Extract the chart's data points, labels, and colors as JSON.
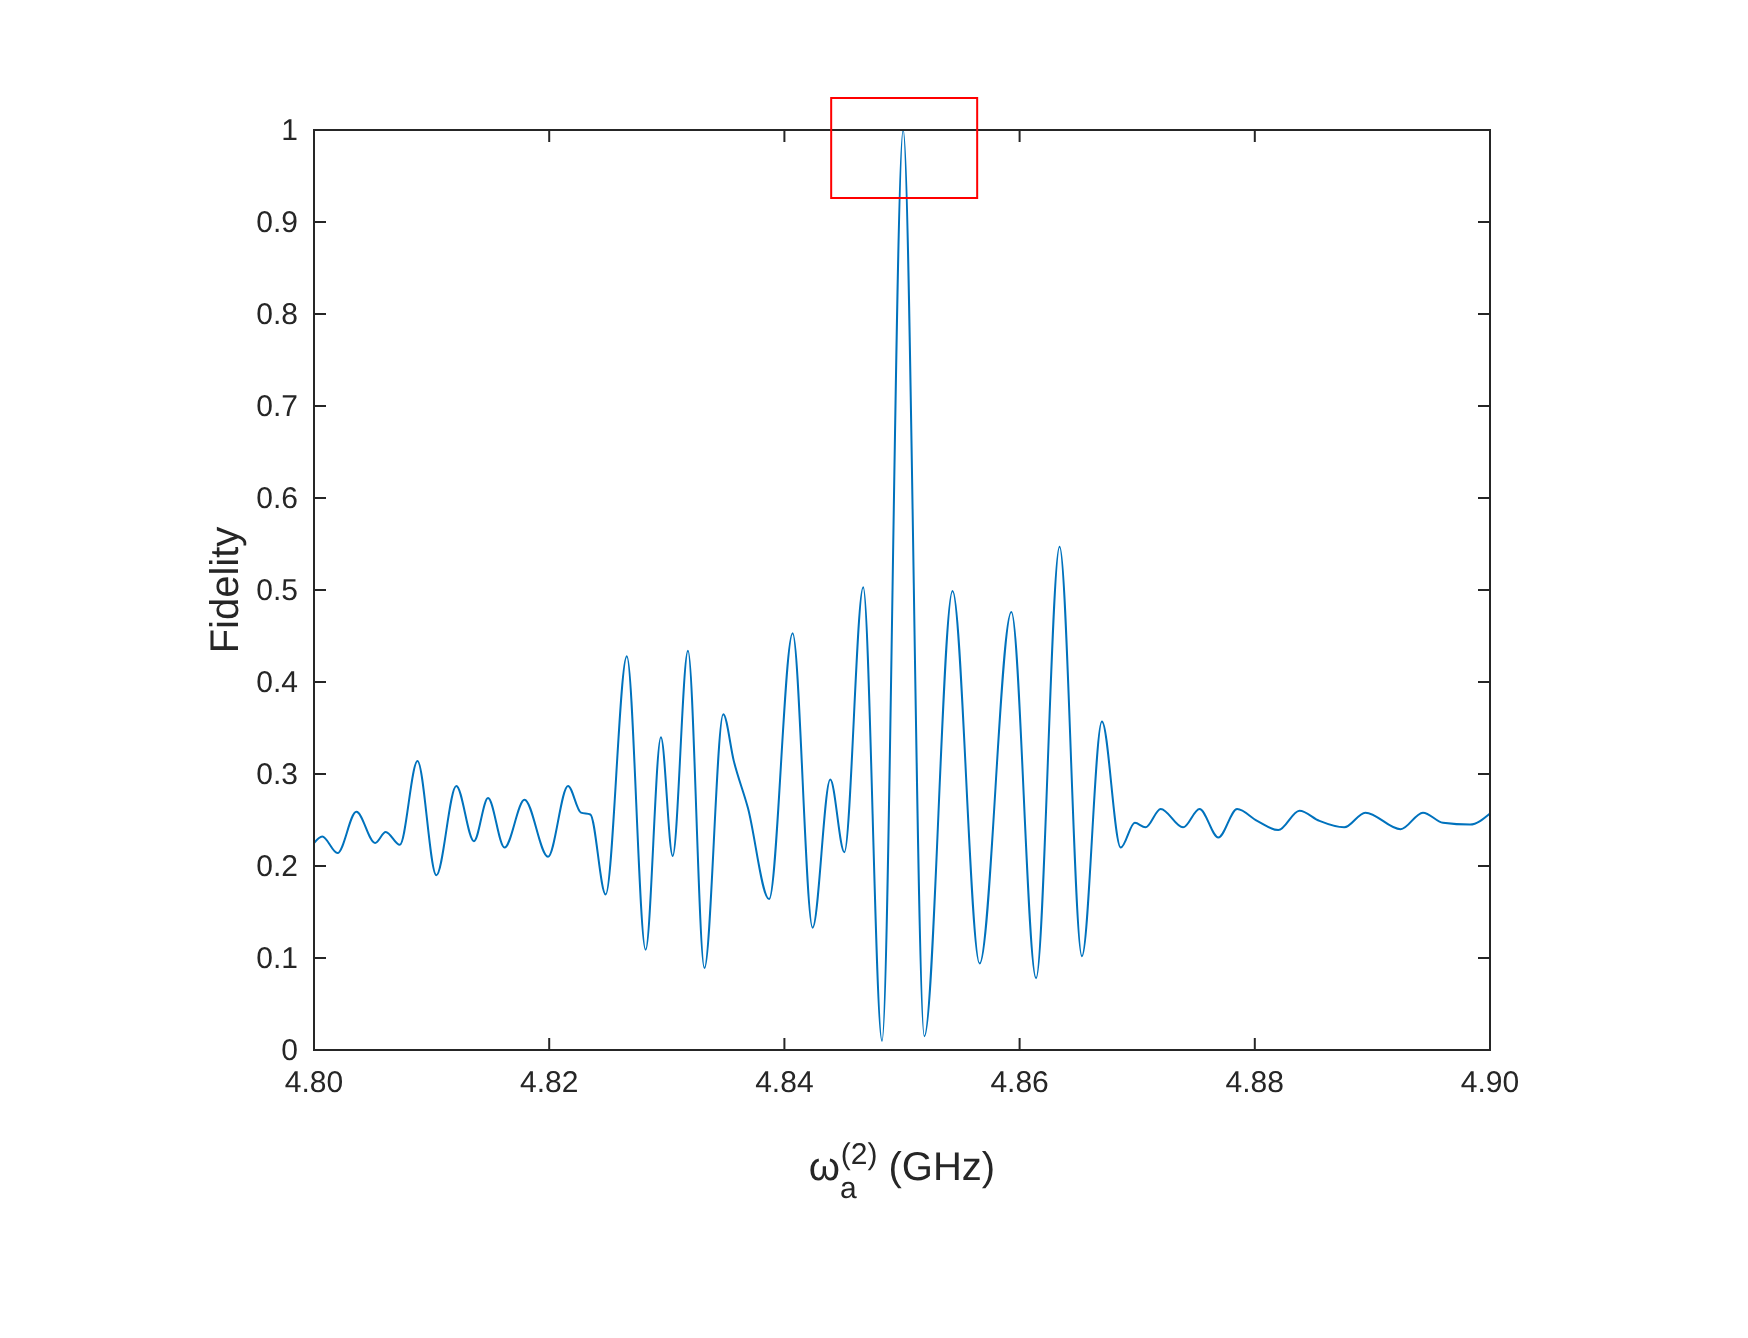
{
  "chart_data": {
    "type": "line",
    "xlabel": "ω$_{a}$$^{(2)}$ (GHz)",
    "ylabel": "Fidelity",
    "xlim": [
      4.8,
      4.9
    ],
    "ylim": [
      0,
      1
    ],
    "xticks": [
      {
        "value": 4.8,
        "label": "4.80"
      },
      {
        "value": 4.82,
        "label": "4.82"
      },
      {
        "value": 4.84,
        "label": "4.84"
      },
      {
        "value": 4.86,
        "label": "4.86"
      },
      {
        "value": 4.88,
        "label": "4.88"
      },
      {
        "value": 4.9,
        "label": "4.90"
      }
    ],
    "yticks": [
      0,
      0.1,
      0.2,
      0.3,
      0.4,
      0.5,
      0.6,
      0.7,
      0.8,
      0.9,
      1
    ],
    "grid": false,
    "marker": "none",
    "series": [
      {
        "color": "#0072bd",
        "x": [
          4.8,
          4.8007,
          4.802,
          4.8036,
          4.8052,
          4.8061,
          4.8073,
          4.8088,
          4.8104,
          4.8121,
          4.8136,
          4.8148,
          4.8162,
          4.8179,
          4.8199,
          4.8216,
          4.8227,
          4.8235,
          4.8248,
          4.8266,
          4.8282,
          4.8295,
          4.8305,
          4.8318,
          4.8332,
          4.8348,
          4.8357,
          4.8369,
          4.8387,
          4.8407,
          4.8424,
          4.8439,
          4.8451,
          4.8467,
          4.8483,
          4.8501,
          4.8519,
          4.8543,
          4.8566,
          4.8593,
          4.8614,
          4.8634,
          4.8653,
          4.867,
          4.8686,
          4.8698,
          4.8707,
          4.872,
          4.8739,
          4.8753,
          4.8769,
          4.8785,
          4.8802,
          4.882,
          4.8838,
          4.8855,
          4.8876,
          4.8894,
          4.8924,
          4.8943,
          4.896,
          4.8983,
          4.9
        ],
        "values": [
          0.225,
          0.232,
          0.214,
          0.259,
          0.225,
          0.237,
          0.223,
          0.314,
          0.19,
          0.287,
          0.227,
          0.274,
          0.22,
          0.272,
          0.21,
          0.287,
          0.258,
          0.256,
          0.169,
          0.428,
          0.109,
          0.34,
          0.211,
          0.434,
          0.089,
          0.365,
          0.314,
          0.263,
          0.164,
          0.453,
          0.133,
          0.294,
          0.215,
          0.503,
          0.01,
          1.0,
          0.015,
          0.499,
          0.094,
          0.476,
          0.078,
          0.547,
          0.102,
          0.357,
          0.22,
          0.247,
          0.242,
          0.262,
          0.242,
          0.262,
          0.231,
          0.262,
          0.249,
          0.239,
          0.26,
          0.249,
          0.242,
          0.258,
          0.24,
          0.258,
          0.247,
          0.245,
          0.257
        ]
      }
    ]
  }
}
